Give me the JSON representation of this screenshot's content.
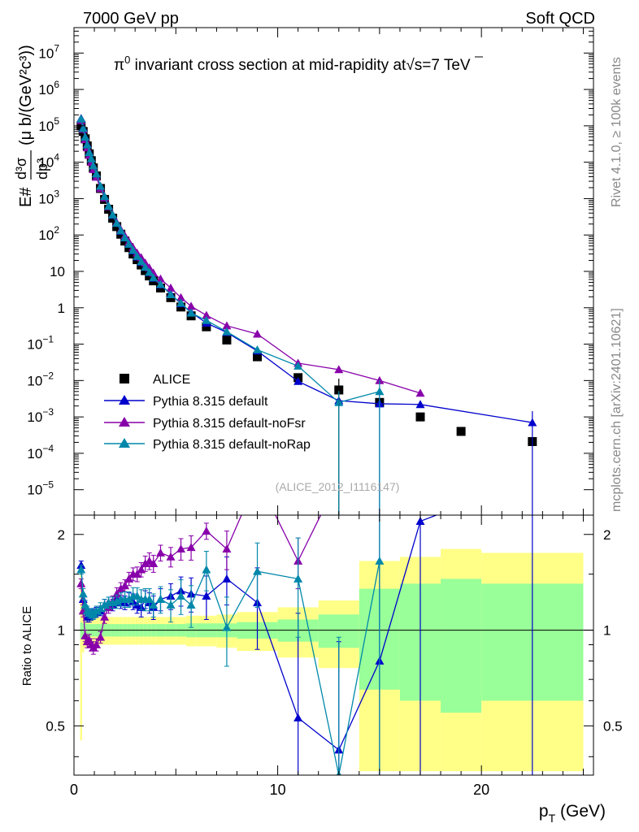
{
  "header": {
    "left": "7000 GeV pp",
    "right": "Soft QCD"
  },
  "side_labels": {
    "rivet": "Rivet 4.1.0, ≥ 100k events",
    "mcplots": "mcplots.cern.ch [arXiv:2401.10621]"
  },
  "chart_data": [
    {
      "type": "scatter",
      "panel": "main",
      "title": "π⁰ invariant cross section at mid-rapidity at √s=7 TeV",
      "title_parts": {
        "pi": "π",
        "sup0": "0",
        "mid": " invariant cross section at mid-rapidity at",
        "sqrt": "√",
        "s": "s=7 TeV"
      },
      "ylabel": "E d³σ/dp³ (μ b/(GeV²c³))",
      "ylabel_parts": {
        "E": "E#",
        "d3s": "d³σ",
        "dp3": "dp³",
        "units": "(μ b/(GeV²c³))"
      },
      "xlabel": "",
      "ylog": true,
      "ylim": [
        2e-06,
        50000000
      ],
      "xlim": [
        0,
        25.5
      ],
      "yticks": [
        {
          "v": 1e-05,
          "base": "10",
          "exp": "−5"
        },
        {
          "v": 0.0001,
          "base": "10",
          "exp": "−4"
        },
        {
          "v": 0.001,
          "base": "10",
          "exp": "−3"
        },
        {
          "v": 0.01,
          "base": "10",
          "exp": "−2"
        },
        {
          "v": 0.1,
          "base": "10",
          "exp": "−1"
        },
        {
          "v": 1,
          "base": "1",
          "exp": ""
        },
        {
          "v": 10,
          "base": "10",
          "exp": ""
        },
        {
          "v": 100,
          "base": "10",
          "exp": "2"
        },
        {
          "v": 1000,
          "base": "10",
          "exp": "3"
        },
        {
          "v": 10000,
          "base": "10",
          "exp": "4"
        },
        {
          "v": 100000,
          "base": "10",
          "exp": "5"
        },
        {
          "v": 1000000,
          "base": "10",
          "exp": "6"
        },
        {
          "v": 10000000,
          "base": "10",
          "exp": "7"
        }
      ],
      "watermark": "(ALICE_2012_I1116147)",
      "legend_position": "bottom-left",
      "series": [
        {
          "name": "ALICE",
          "color": "#000000",
          "marker": "square",
          "x": [
            0.35,
            0.45,
            0.55,
            0.65,
            0.75,
            0.85,
            0.95,
            1.1,
            1.3,
            1.5,
            1.7,
            1.9,
            2.1,
            2.3,
            2.5,
            2.7,
            2.9,
            3.1,
            3.3,
            3.5,
            3.7,
            3.9,
            4.25,
            4.75,
            5.25,
            5.75,
            6.5,
            7.5,
            9.0,
            11.0,
            13.0,
            15.0,
            17.0,
            19.0,
            22.5
          ],
          "y": [
            100000,
            70000,
            44000,
            28000,
            17000,
            11000,
            7000,
            4200,
            1900,
            950,
            510,
            290,
            170,
            105,
            68,
            45,
            30,
            21,
            15,
            10.5,
            7.5,
            5.5,
            3.5,
            1.9,
            1.05,
            0.6,
            0.3,
            0.13,
            0.045,
            0.012,
            0.0055,
            0.0025,
            0.001,
            0.0004,
            0.00021
          ]
        },
        {
          "name": "Pythia 8.315 default",
          "color": "#0000cc",
          "marker": "triangle",
          "x": [
            0.35,
            0.45,
            0.55,
            0.65,
            0.75,
            0.85,
            0.95,
            1.1,
            1.3,
            1.5,
            1.7,
            1.9,
            2.1,
            2.3,
            2.5,
            2.7,
            2.9,
            3.1,
            3.3,
            3.5,
            3.7,
            3.9,
            4.25,
            4.75,
            5.25,
            5.75,
            6.5,
            7.5,
            9.0,
            11.0,
            13.0,
            15.0,
            17.0,
            22.5
          ],
          "y": [
            160000,
            88000,
            50000,
            31000,
            19000,
            12500,
            8000,
            4800,
            2200,
            1150,
            620,
            350,
            210,
            128,
            83,
            56,
            37,
            25,
            18,
            13,
            9.3,
            6.5,
            4.3,
            2.4,
            1.3,
            0.75,
            0.38,
            0.21,
            0.065,
            0.0095,
            0.0028,
            0.0023,
            0.0022,
            0.0007
          ]
        },
        {
          "name": "Pythia 8.315 default-noFsr",
          "color": "#8800aa",
          "marker": "triangle",
          "x": [
            0.35,
            0.45,
            0.55,
            0.65,
            0.75,
            0.85,
            0.95,
            1.1,
            1.3,
            1.5,
            1.7,
            1.9,
            2.1,
            2.3,
            2.5,
            2.7,
            2.9,
            3.1,
            3.3,
            3.5,
            3.7,
            3.9,
            4.25,
            4.75,
            5.25,
            5.75,
            6.5,
            7.5,
            9.0,
            11.0,
            13.0,
            15.0,
            17.0
          ],
          "y": [
            140000,
            80000,
            42000,
            25000,
            15500,
            10000,
            6300,
            3900,
            1900,
            1050,
            600,
            360,
            220,
            140,
            95,
            65,
            45,
            32,
            24,
            17,
            12.5,
            9,
            6.2,
            3.5,
            1.9,
            1.1,
            0.62,
            0.32,
            0.19,
            0.03,
            0.02,
            0.01,
            0.0045
          ]
        },
        {
          "name": "Pythia 8.315 default-noRap",
          "color": "#0088aa",
          "marker": "triangle",
          "x": [
            0.35,
            0.45,
            0.55,
            0.65,
            0.75,
            0.85,
            0.95,
            1.1,
            1.3,
            1.5,
            1.7,
            1.9,
            2.1,
            2.3,
            2.5,
            2.7,
            2.9,
            3.1,
            3.3,
            3.5,
            3.7,
            3.9,
            4.25,
            4.75,
            5.25,
            5.75,
            6.5,
            7.5,
            9.0,
            11.0,
            13.0,
            15.0
          ],
          "y": [
            155000,
            85000,
            49000,
            30000,
            18500,
            12500,
            8000,
            4800,
            2200,
            1150,
            620,
            360,
            210,
            132,
            84,
            56,
            38,
            26,
            18.5,
            13,
            9.5,
            6.7,
            4.4,
            2.3,
            1.35,
            0.72,
            0.45,
            0.22,
            0.07,
            0.025,
            0.0025,
            0.005
          ]
        }
      ]
    },
    {
      "type": "line",
      "panel": "ratio",
      "ylabel": "Ratio to ALICE",
      "xlabel": "p_T (GeV)",
      "xlabel_parts": {
        "p": "p",
        "T": "T",
        "units": " (GeV)"
      },
      "xlim": [
        0,
        25.5
      ],
      "ylim": [
        0.35,
        2.3
      ],
      "xticks": [
        0,
        10,
        20
      ],
      "yticks": [
        0.5,
        1,
        2
      ],
      "reference_line": 1,
      "bands": {
        "edges": [
          0.3,
          0.4,
          0.5,
          0.6,
          0.7,
          0.8,
          0.9,
          1.0,
          1.2,
          1.4,
          1.6,
          1.8,
          2.0,
          2.2,
          2.4,
          2.6,
          2.8,
          3.0,
          3.2,
          3.4,
          3.6,
          3.8,
          4.0,
          4.5,
          5.0,
          5.5,
          6.0,
          7.0,
          8.0,
          10.0,
          12.0,
          14.0,
          16.0,
          18.0,
          20.0,
          25.0
        ],
        "green_half": [
          0.06,
          0.05,
          0.05,
          0.045,
          0.045,
          0.045,
          0.045,
          0.045,
          0.045,
          0.045,
          0.045,
          0.045,
          0.045,
          0.045,
          0.045,
          0.045,
          0.045,
          0.045,
          0.045,
          0.045,
          0.045,
          0.045,
          0.045,
          0.045,
          0.045,
          0.05,
          0.05,
          0.05,
          0.06,
          0.08,
          0.12,
          0.35,
          0.4,
          0.45,
          0.4
        ],
        "yellow_half": [
          0.55,
          0.15,
          0.12,
          0.11,
          0.1,
          0.1,
          0.1,
          0.1,
          0.1,
          0.1,
          0.1,
          0.1,
          0.1,
          0.1,
          0.1,
          0.1,
          0.1,
          0.1,
          0.1,
          0.1,
          0.1,
          0.1,
          0.1,
          0.1,
          0.1,
          0.11,
          0.11,
          0.12,
          0.14,
          0.18,
          0.24,
          0.65,
          0.7,
          0.8,
          0.75
        ]
      },
      "series": [
        {
          "name": "Pythia 8.315 default",
          "color": "#0000cc",
          "x": [
            0.35,
            0.45,
            0.55,
            0.65,
            0.75,
            0.85,
            0.95,
            1.1,
            1.3,
            1.5,
            1.7,
            1.9,
            2.1,
            2.3,
            2.5,
            2.7,
            2.9,
            3.1,
            3.3,
            3.5,
            3.7,
            3.9,
            4.25,
            4.75,
            5.25,
            5.75,
            6.5,
            7.5,
            9.0,
            11.0,
            13.0,
            15.0,
            17.0,
            22.5
          ],
          "y": [
            1.6,
            1.25,
            1.15,
            1.1,
            1.1,
            1.12,
            1.13,
            1.14,
            1.15,
            1.2,
            1.22,
            1.2,
            1.25,
            1.22,
            1.22,
            1.25,
            1.23,
            1.2,
            1.18,
            1.25,
            1.22,
            1.18,
            1.25,
            1.28,
            1.33,
            1.3,
            1.28,
            1.45,
            1.22,
            0.53,
            0.42,
            0.8,
            2.2,
            3.0
          ],
          "err": [
            0.05,
            0.05,
            0.04,
            0.04,
            0.04,
            0.04,
            0.04,
            0.04,
            0.04,
            0.05,
            0.05,
            0.05,
            0.05,
            0.05,
            0.06,
            0.06,
            0.07,
            0.07,
            0.08,
            0.08,
            0.09,
            0.1,
            0.1,
            0.12,
            0.14,
            0.16,
            0.2,
            0.25,
            0.35,
            0.6,
            0.5,
            1.5,
            2.0,
            3.0
          ]
        },
        {
          "name": "Pythia 8.315 default-noFsr",
          "color": "#8800aa",
          "x": [
            0.35,
            0.45,
            0.55,
            0.65,
            0.75,
            0.85,
            0.95,
            1.1,
            1.3,
            1.5,
            1.7,
            1.9,
            2.1,
            2.3,
            2.5,
            2.7,
            2.9,
            3.1,
            3.3,
            3.5,
            3.7,
            3.9,
            4.25,
            4.75,
            5.25,
            5.75,
            6.5,
            7.5,
            9.0,
            11.0,
            13.0
          ],
          "y": [
            1.4,
            1.15,
            0.96,
            0.92,
            0.93,
            0.9,
            0.88,
            0.9,
            0.95,
            1.1,
            1.18,
            1.23,
            1.3,
            1.35,
            1.38,
            1.45,
            1.5,
            1.5,
            1.55,
            1.62,
            1.65,
            1.62,
            1.75,
            1.7,
            1.8,
            1.82,
            2.05,
            1.8,
            3.0,
            1.65,
            3.0
          ],
          "err": [
            0.05,
            0.05,
            0.04,
            0.04,
            0.04,
            0.04,
            0.04,
            0.04,
            0.04,
            0.05,
            0.05,
            0.05,
            0.06,
            0.06,
            0.06,
            0.07,
            0.07,
            0.08,
            0.08,
            0.09,
            0.1,
            0.1,
            0.1,
            0.12,
            0.14,
            0.16,
            0.12,
            0.25,
            0.35,
            0.3,
            0.5
          ]
        },
        {
          "name": "Pythia 8.315 default-noRap",
          "color": "#0088aa",
          "x": [
            0.35,
            0.45,
            0.55,
            0.65,
            0.75,
            0.85,
            0.95,
            1.1,
            1.3,
            1.5,
            1.7,
            1.9,
            2.1,
            2.3,
            2.5,
            2.7,
            2.9,
            3.1,
            3.3,
            3.5,
            3.7,
            3.9,
            4.25,
            4.75,
            5.25,
            5.75,
            6.5,
            7.5,
            9.0,
            11.0,
            13.0,
            15.0
          ],
          "y": [
            1.55,
            1.3,
            1.2,
            1.15,
            1.13,
            1.13,
            1.12,
            1.15,
            1.17,
            1.2,
            1.22,
            1.22,
            1.23,
            1.25,
            1.25,
            1.25,
            1.28,
            1.28,
            1.25,
            1.25,
            1.25,
            1.2,
            1.25,
            1.2,
            1.28,
            1.2,
            1.55,
            1.02,
            1.53,
            1.45,
            0.35,
            1.65
          ],
          "err": [
            0.05,
            0.05,
            0.04,
            0.04,
            0.04,
            0.04,
            0.04,
            0.04,
            0.05,
            0.05,
            0.05,
            0.05,
            0.06,
            0.06,
            0.07,
            0.07,
            0.08,
            0.08,
            0.09,
            0.1,
            0.1,
            0.1,
            0.12,
            0.14,
            0.16,
            0.18,
            0.22,
            0.25,
            0.35,
            0.5,
            0.6,
            1.5
          ]
        }
      ]
    }
  ]
}
